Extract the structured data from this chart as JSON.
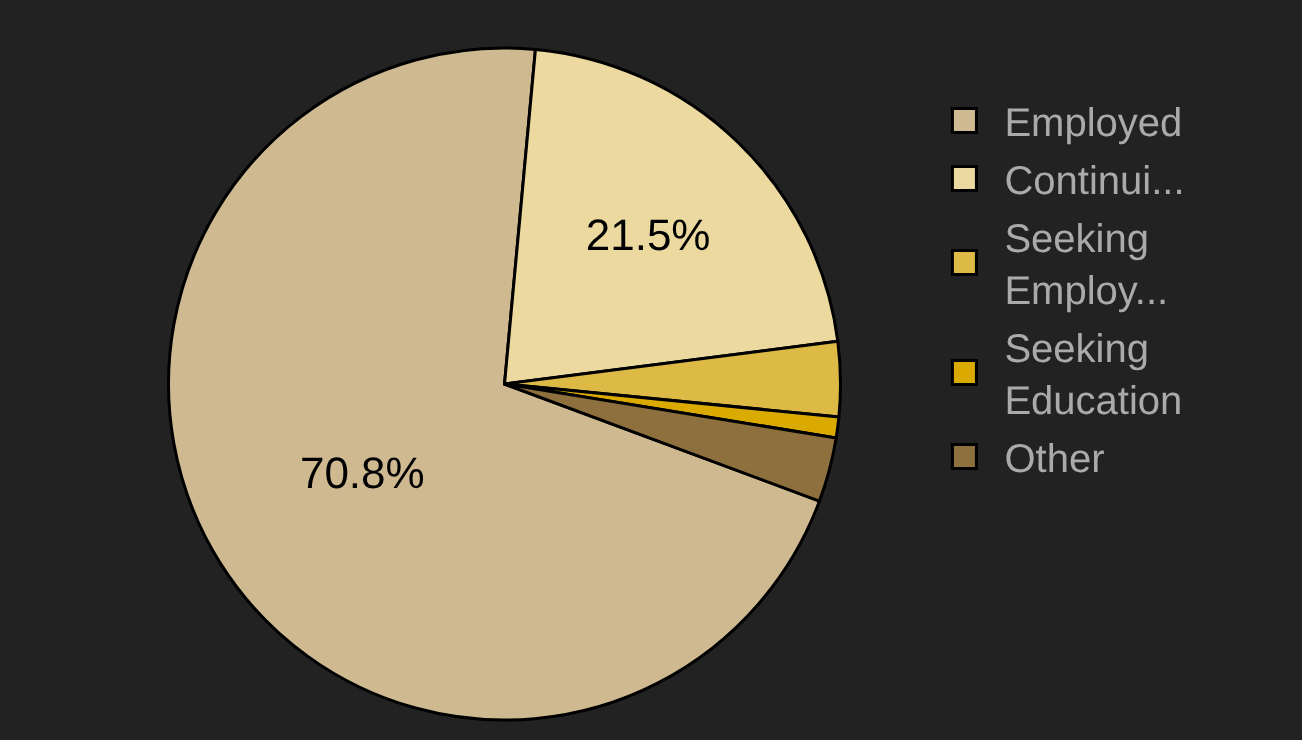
{
  "chart_data": {
    "type": "pie",
    "categories": [
      "Employed",
      "Continui...",
      "Seeking Employ...",
      "Seeking Education",
      "Other"
    ],
    "values": [
      70.8,
      21.5,
      3.6,
      1.0,
      3.1
    ],
    "colors": [
      "#cfb991",
      "#ebd99f",
      "#ddb945",
      "#daaa00",
      "#8e6f3e"
    ],
    "value_labels": [
      "70.8%",
      "21.5%",
      null,
      null,
      null
    ],
    "legend": "right"
  }
}
